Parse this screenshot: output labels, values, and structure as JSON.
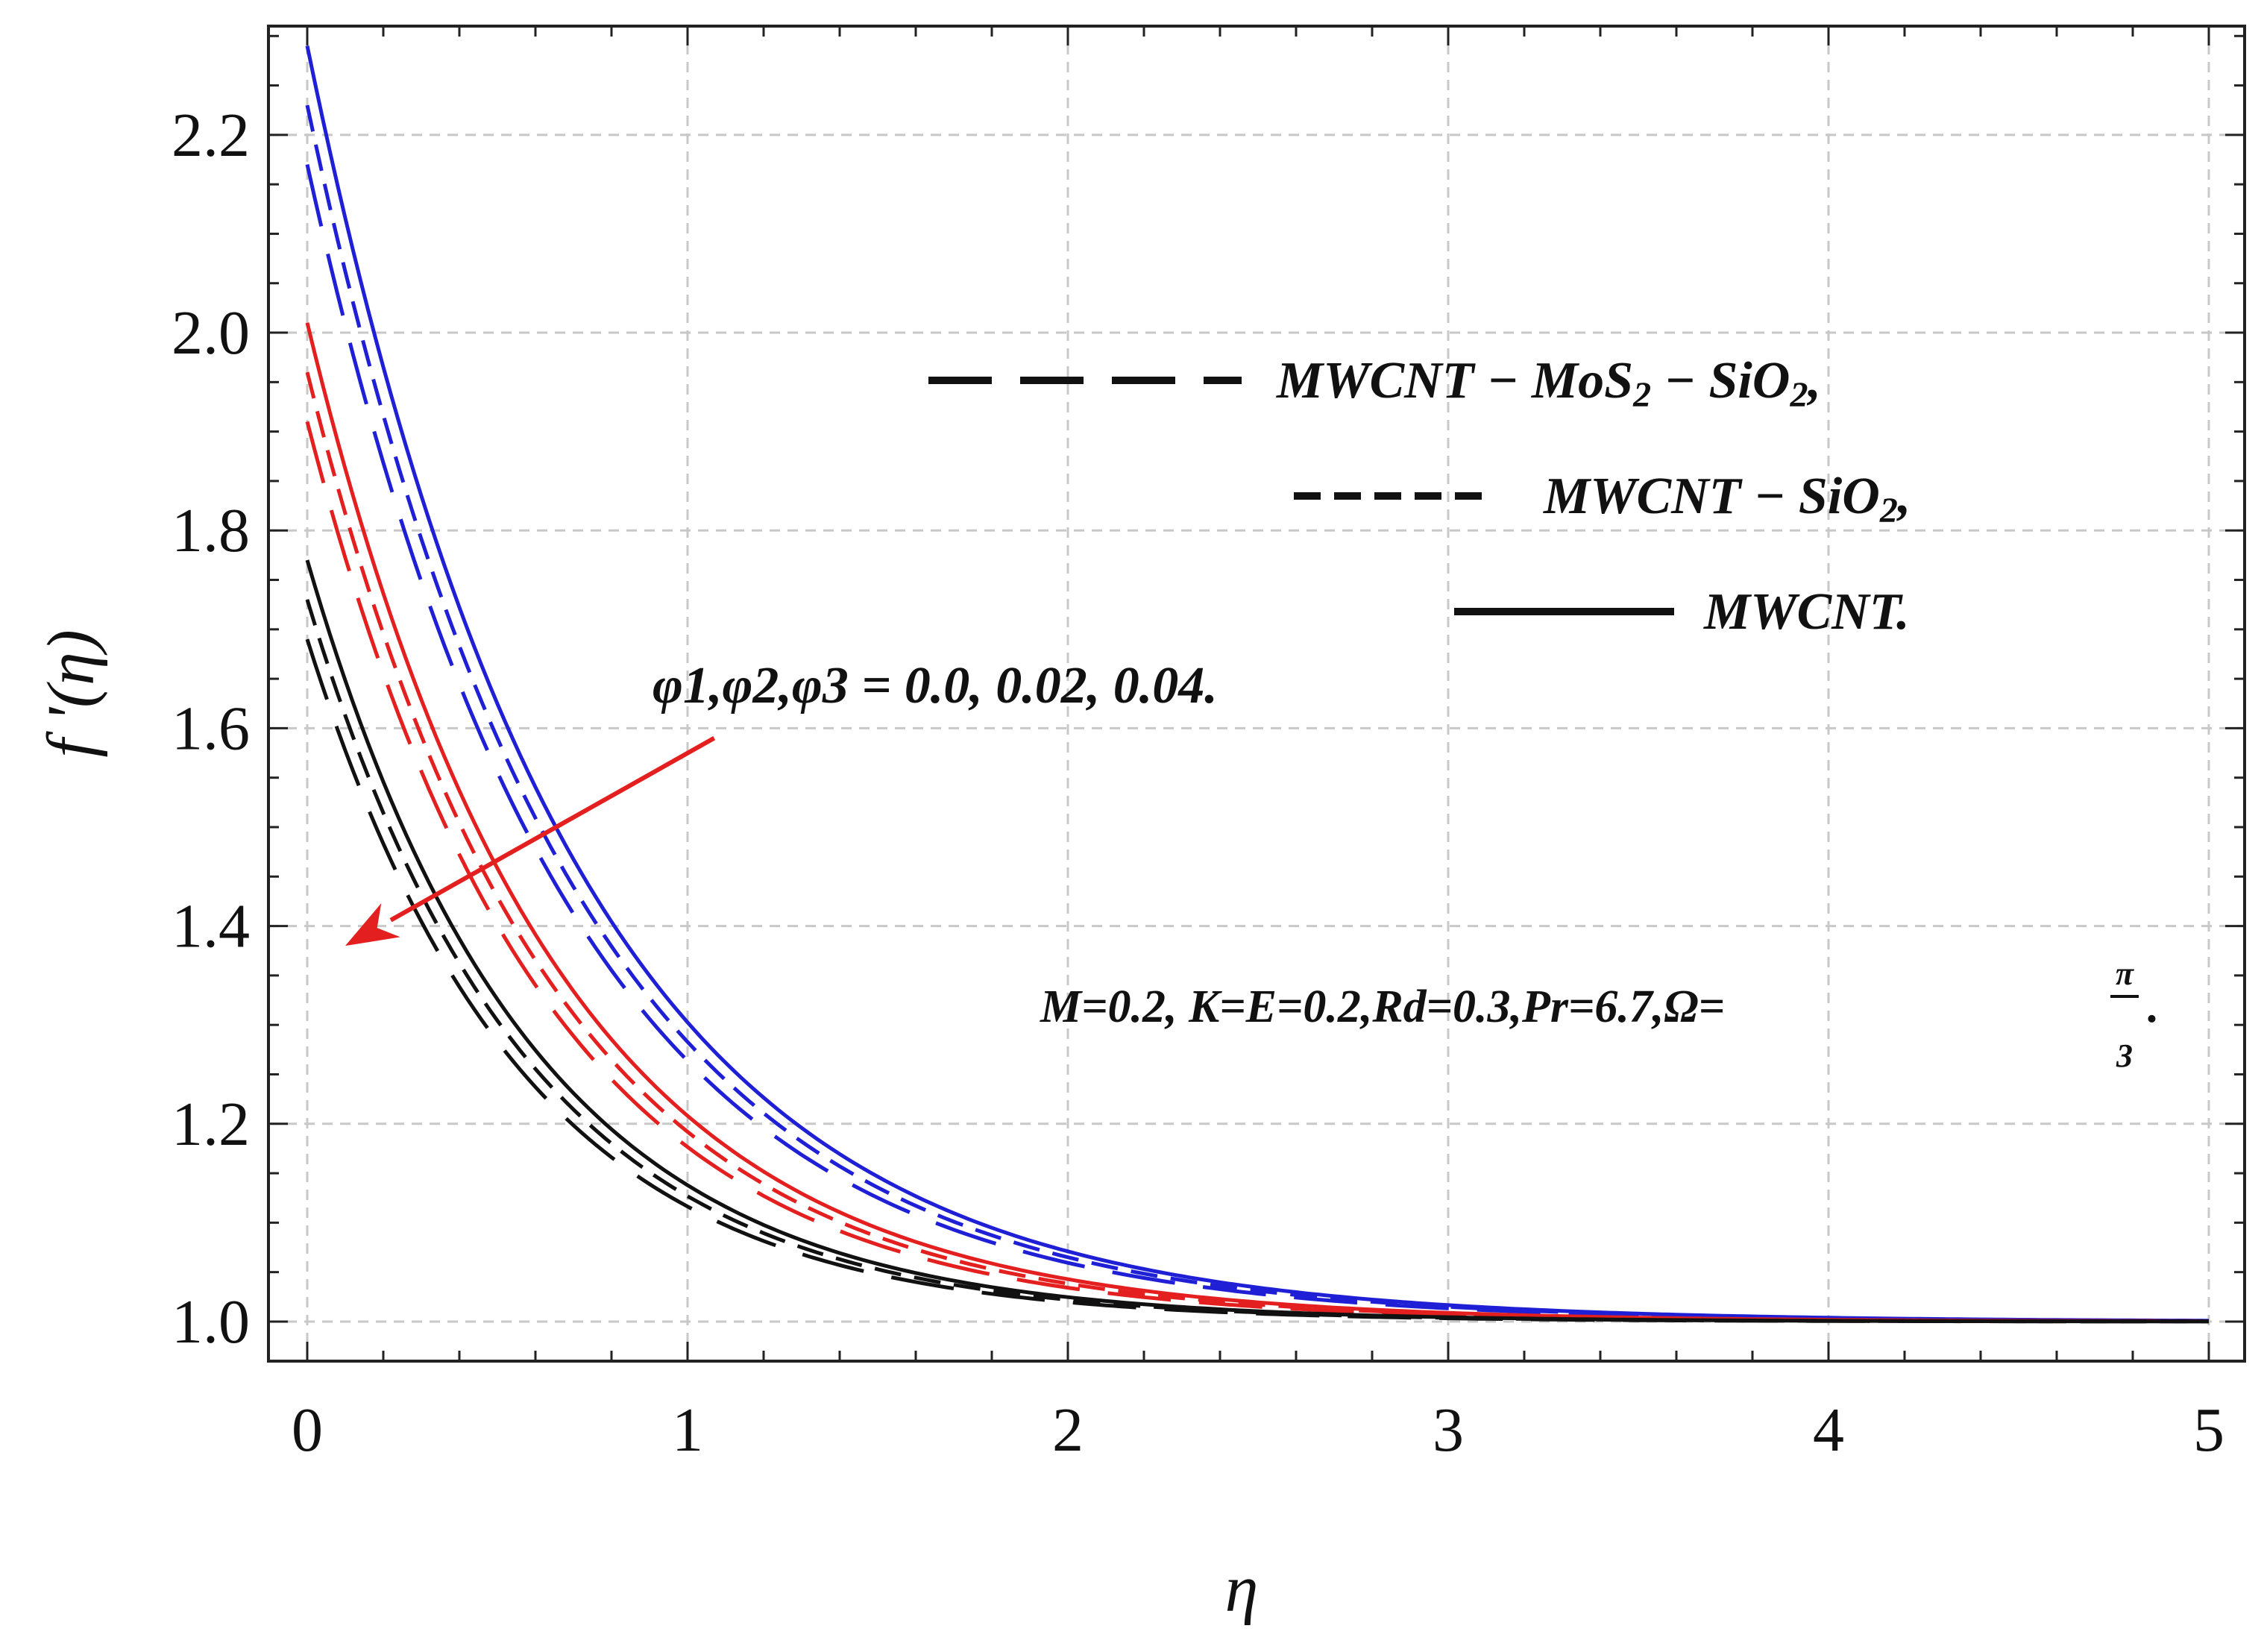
{
  "chart_data": {
    "type": "line",
    "xlabel": "η",
    "ylabel": "f '(η)",
    "xlim": [
      0,
      5
    ],
    "ylim": [
      0.96,
      2.31
    ],
    "xticks": [
      0,
      1,
      2,
      3,
      4,
      5
    ],
    "xtick_labels": [
      "0",
      "1",
      "2",
      "3",
      "4",
      "5"
    ],
    "yticks": [
      1.0,
      1.2,
      1.4,
      1.6,
      1.8,
      2.0,
      2.2
    ],
    "ytick_labels": [
      "1.0",
      "1.2",
      "1.4",
      "1.6",
      "1.8",
      "2.0",
      "2.2"
    ],
    "grid": true,
    "colors": {
      "phi_0_0": "#1f1fd6",
      "phi_0_02": "#e3201f",
      "phi_0_04": "#111111",
      "arrow": "#e3201f"
    },
    "series": [
      {
        "name": "MWCNT, φ = 0.0",
        "group": "phi_0_0",
        "style": "solid",
        "f0": 2.29,
        "decay": 1.45
      },
      {
        "name": "MWCNT − SiO2, φ = 0.0",
        "group": "phi_0_0",
        "style": "short-dash",
        "f0": 2.23,
        "decay": 1.47
      },
      {
        "name": "MWCNT − MoS2 − SiO2, φ = 0.0",
        "group": "phi_0_0",
        "style": "long-dash",
        "f0": 2.17,
        "decay": 1.49
      },
      {
        "name": "MWCNT, φ = 0.02",
        "group": "phi_0_02",
        "style": "solid",
        "f0": 2.01,
        "decay": 1.58
      },
      {
        "name": "MWCNT − SiO2, φ = 0.02",
        "group": "phi_0_02",
        "style": "short-dash",
        "f0": 1.96,
        "decay": 1.61
      },
      {
        "name": "MWCNT − MoS2 − SiO2, φ = 0.02",
        "group": "phi_0_02",
        "style": "long-dash",
        "f0": 1.91,
        "decay": 1.64
      },
      {
        "name": "MWCNT, φ = 0.04",
        "group": "phi_0_04",
        "style": "solid",
        "f0": 1.77,
        "decay": 1.72
      },
      {
        "name": "MWCNT − SiO2, φ = 0.04",
        "group": "phi_0_04",
        "style": "short-dash",
        "f0": 1.73,
        "decay": 1.75
      },
      {
        "name": "MWCNT − MoS2 − SiO2, φ = 0.04",
        "group": "phi_0_04",
        "style": "long-dash",
        "f0": 1.69,
        "decay": 1.78
      }
    ],
    "legend": {
      "position": "top-right",
      "entries": [
        {
          "style": "long-dash",
          "label": "MWCNT − MoS2 − SiO2,",
          "parts": [
            "MWCNT − MoS",
            "2",
            " − SiO",
            "2",
            ","
          ]
        },
        {
          "style": "short-dash",
          "label": "MWCNT − SiO2,",
          "parts": [
            "MWCNT − SiO",
            "2",
            ","
          ]
        },
        {
          "style": "solid",
          "label": "MWCNT.",
          "parts": [
            "MWCNT",
            "",
            ".",
            "",
            ""
          ]
        }
      ]
    },
    "annotation": {
      "label": "φ1,φ2,φ3 = 0.0, 0.02, 0.04.",
      "arrow": {
        "from": [
          1.07,
          1.59
        ],
        "to": [
          0.1,
          1.38
        ]
      }
    },
    "parameters": {
      "label": "M=0.2, K=E=0.2,Rd=0.3,Pr=6.7,Ω=π/3.",
      "lead": "M=0.2, K=E=0.2,Rd=0.3,Pr=6.7,Ω=",
      "frac_num": "π",
      "frac_den": "3",
      "tail": "."
    }
  }
}
